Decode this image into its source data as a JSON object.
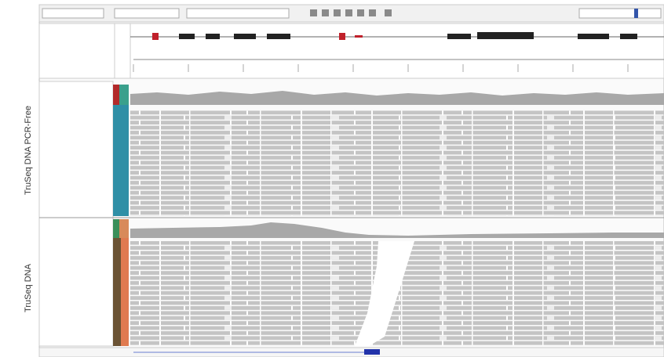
{
  "labels": [
    "TruSeq DNA PCR-Free",
    "TruSeq DNA"
  ]
}
